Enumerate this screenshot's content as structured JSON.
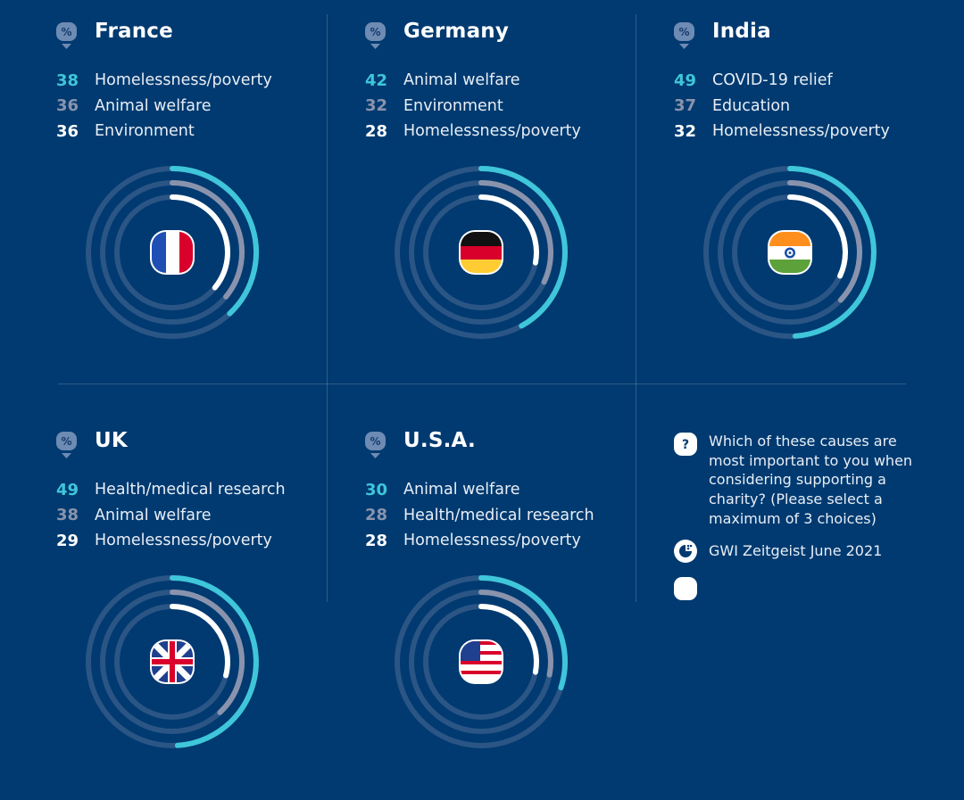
{
  "colors": {
    "background": "#003a70",
    "rank1": "#3fc6da",
    "rank2": "#8a93ad",
    "rank3": "#ffffff",
    "track": "#2a5585"
  },
  "chart_data": {
    "type": "radial-bar",
    "title": "Which of these causes are most important to you when considering supporting a charity?",
    "unit": "%",
    "max": 100,
    "countries": [
      {
        "name": "France",
        "flag": "france-flag",
        "causes": [
          {
            "label": "Homelessness/poverty",
            "value": 38
          },
          {
            "label": "Animal welfare",
            "value": 36
          },
          {
            "label": "Environment",
            "value": 36
          }
        ]
      },
      {
        "name": "Germany",
        "flag": "germany-flag",
        "causes": [
          {
            "label": "Animal welfare",
            "value": 42
          },
          {
            "label": "Environment",
            "value": 32
          },
          {
            "label": "Homelessness/poverty",
            "value": 28
          }
        ]
      },
      {
        "name": "India",
        "flag": "india-flag",
        "causes": [
          {
            "label": "COVID-19 relief",
            "value": 49
          },
          {
            "label": "Education",
            "value": 37
          },
          {
            "label": "Homelessness/poverty",
            "value": 32
          }
        ]
      },
      {
        "name": "UK",
        "flag": "uk-flag",
        "causes": [
          {
            "label": "Health/medical research",
            "value": 49
          },
          {
            "label": "Animal welfare",
            "value": 38
          },
          {
            "label": "Homelessness/poverty",
            "value": 29
          }
        ]
      },
      {
        "name": "U.S.A.",
        "flag": "usa-flag",
        "causes": [
          {
            "label": "Animal welfare",
            "value": 30
          },
          {
            "label": "Health/medical research",
            "value": 28
          },
          {
            "label": "Homelessness/poverty",
            "value": 28
          }
        ]
      }
    ]
  },
  "info": {
    "question_icon": "?",
    "question": "Which of these causes are most important to you when considering supporting a charity? (Please select a maximum of 3 choices)",
    "source": "GWI Zeitgeist June 2021"
  }
}
